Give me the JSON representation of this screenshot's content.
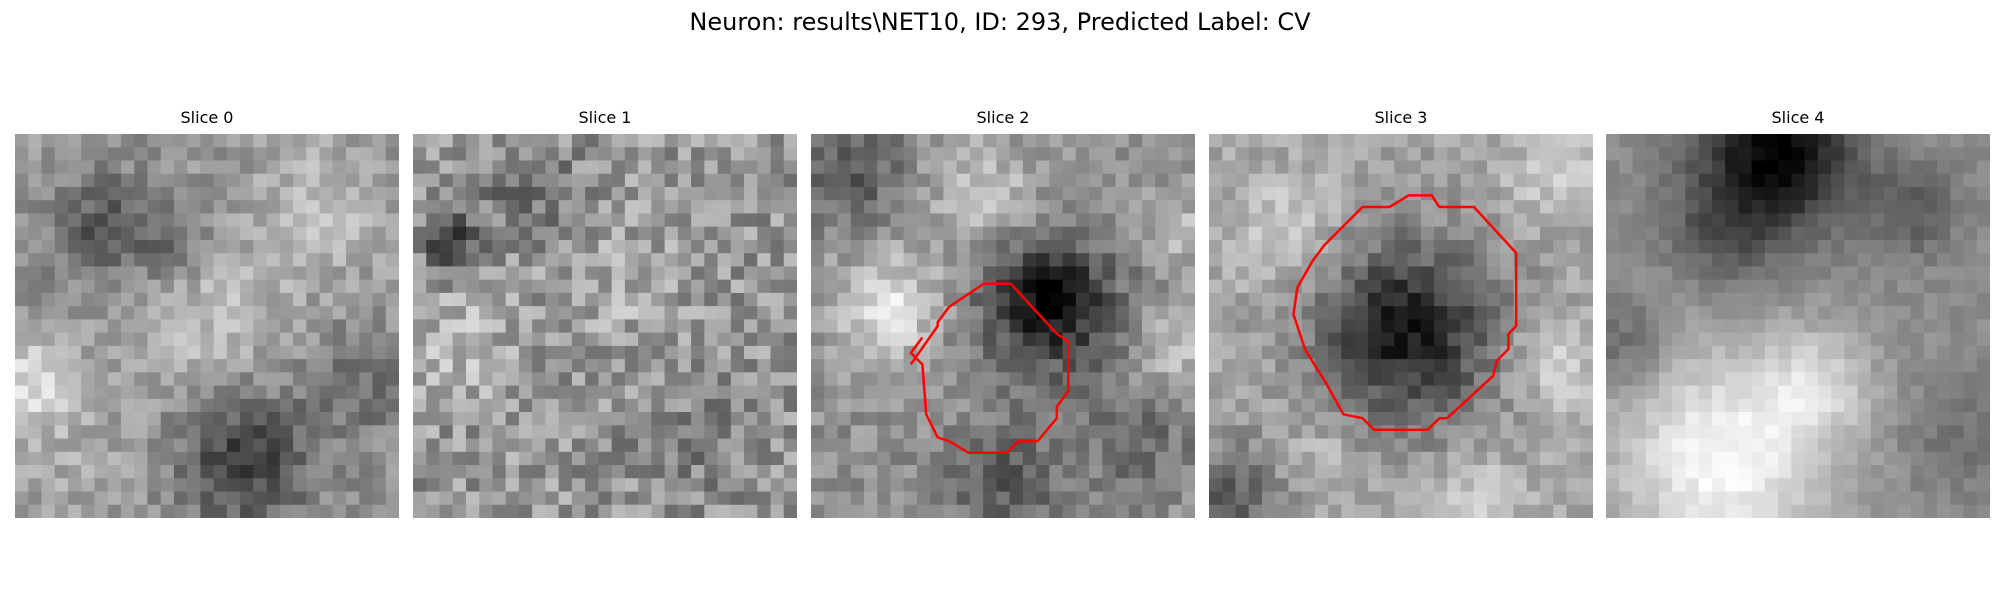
{
  "figure": {
    "title": "Neuron: results\\NET10, ID: 293, Predicted Label: CV"
  },
  "colors": {
    "contour": "#ff0000",
    "background": "#ffffff",
    "text": "#000000"
  },
  "panels": [
    {
      "title": "Slice 0",
      "pattern": "smooth-gray-texture",
      "contour": false
    },
    {
      "title": "Slice 1",
      "pattern": "fine-gray-noise",
      "contour": false
    },
    {
      "title": "Slice 2",
      "pattern": "dark-cell-with-contour",
      "contour": true
    },
    {
      "title": "Slice 3",
      "pattern": "dark-cell-with-contour",
      "contour": true
    },
    {
      "title": "Slice 4",
      "pattern": "dark-top-bright-bottom",
      "contour": false
    }
  ]
}
